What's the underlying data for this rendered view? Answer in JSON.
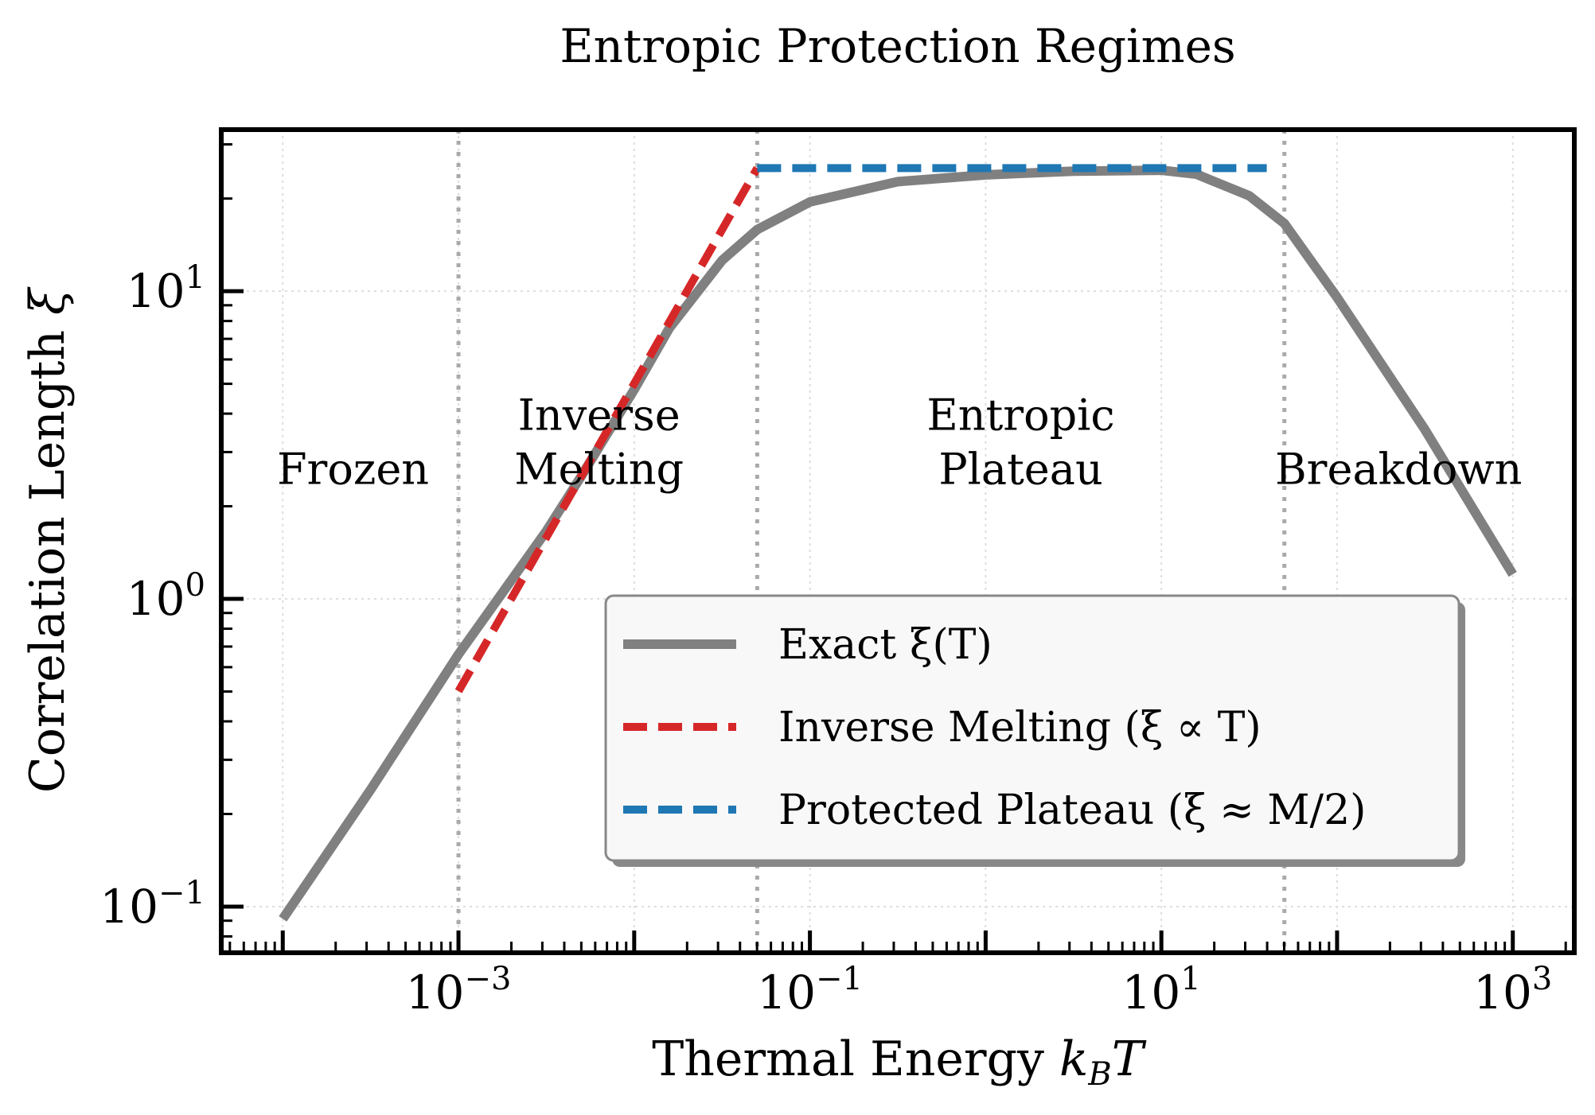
{
  "chart_data": {
    "type": "line",
    "title": "Entropic Protection Regimes",
    "xlabel": "Thermal Energy k_B T",
    "ylabel": "Correlation Length ξ",
    "xscale": "log",
    "yscale": "log",
    "xlim_log10": [
      -4.35,
      3.35
    ],
    "ylim_log10": [
      -1.15,
      1.525
    ],
    "grid": true,
    "x_ticks": [
      {
        "value": -3,
        "base": "10",
        "exp": "−3"
      },
      {
        "value": -1,
        "base": "10",
        "exp": "−1"
      },
      {
        "value": 1,
        "base": "10",
        "exp": "1"
      },
      {
        "value": 3,
        "base": "10",
        "exp": "3"
      }
    ],
    "y_ticks": [
      {
        "value": -1,
        "base": "10",
        "exp": "−1"
      },
      {
        "value": 0,
        "base": "10",
        "exp": "0"
      },
      {
        "value": 1,
        "base": "10",
        "exp": "1"
      }
    ],
    "regime_boundaries_log10_T": [
      -3,
      -1.3,
      1.7
    ],
    "regions": [
      {
        "lines": [
          "Frozen"
        ],
        "log_x": -3.6,
        "log_y": 0.42
      },
      {
        "lines": [
          "Inverse",
          "Melting"
        ],
        "log_x": -2.2,
        "log_y": 0.42
      },
      {
        "lines": [
          "Entropic",
          "Plateau"
        ],
        "log_x": 0.2,
        "log_y": 0.42
      },
      {
        "lines": [
          "Breakdown"
        ],
        "log_x": 2.35,
        "log_y": 0.42
      }
    ],
    "series": [
      {
        "name": "Exact ξ(T)",
        "style": "solid",
        "color": "#808080",
        "log_x": [
          -4.0,
          -3.5,
          -3.0,
          -2.5,
          -2.3,
          -2.0,
          -1.8,
          -1.5,
          -1.3,
          -1.0,
          -0.5,
          0.0,
          0.5,
          1.0,
          1.2,
          1.5,
          1.7,
          2.0,
          2.5,
          3.0
        ],
        "log_y": [
          -1.04,
          -0.62,
          -0.18,
          0.22,
          0.4,
          0.68,
          0.88,
          1.1,
          1.2,
          1.29,
          1.356,
          1.378,
          1.39,
          1.393,
          1.38,
          1.31,
          1.22,
          0.98,
          0.55,
          0.08
        ]
      },
      {
        "name": "Inverse Melting (ξ ∝ T)",
        "style": "dashed",
        "color": "#d62728",
        "log_x": [
          -3.0,
          -1.3
        ],
        "log_y": [
          -0.3,
          1.4
        ]
      },
      {
        "name": "Protected Plateau (ξ ≈ M/2)",
        "style": "dashed",
        "color": "#1f77b4",
        "log_x": [
          -1.3,
          1.6
        ],
        "log_y": [
          1.4,
          1.4
        ]
      }
    ]
  }
}
